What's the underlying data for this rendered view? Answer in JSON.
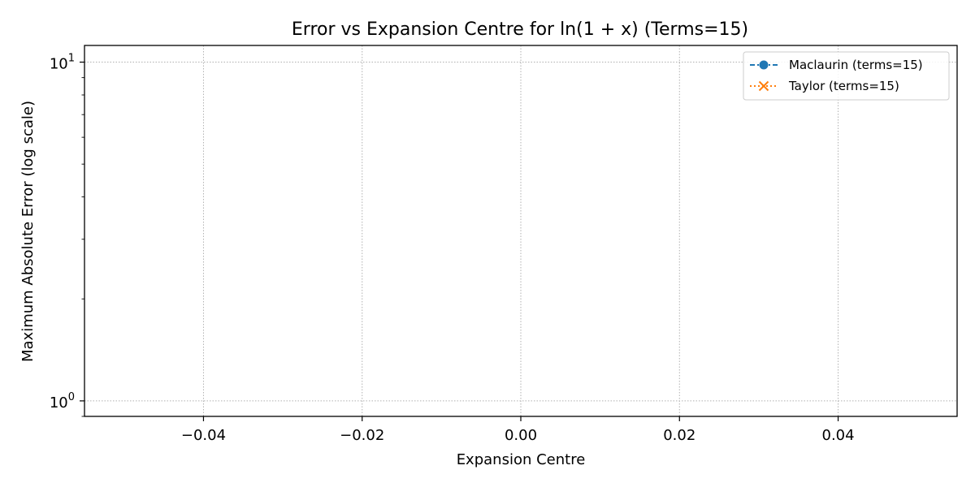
{
  "chart_data": {
    "type": "line",
    "title": "Error vs Expansion Centre for ln(1 + x) (Terms=15)",
    "xlabel": "Expansion Centre",
    "ylabel": "Maximum Absolute Error (log scale)",
    "xlim": [
      -0.055,
      0.055
    ],
    "ylim": [
      0.9,
      11.2
    ],
    "yscale": "log",
    "grid": true,
    "legend_position": "upper-right",
    "x_ticks": [
      {
        "value": -0.04,
        "label": "−0.04"
      },
      {
        "value": -0.02,
        "label": "−0.02"
      },
      {
        "value": 0.0,
        "label": "0.00"
      },
      {
        "value": 0.02,
        "label": "0.02"
      },
      {
        "value": 0.04,
        "label": "0.04"
      }
    ],
    "y_ticks": [
      {
        "value": 1,
        "base": "10",
        "exp": "0"
      },
      {
        "value": 10,
        "base": "10",
        "exp": "1"
      }
    ],
    "series": [
      {
        "name": "Maclaurin (terms=15)",
        "color": "#1f77b4",
        "marker": "circle",
        "linestyle": "dash-dot",
        "x": [],
        "y": []
      },
      {
        "name": "Taylor (terms=15)",
        "color": "#ff7f0e",
        "marker": "x",
        "linestyle": "dotted",
        "x": [],
        "y": []
      }
    ]
  }
}
